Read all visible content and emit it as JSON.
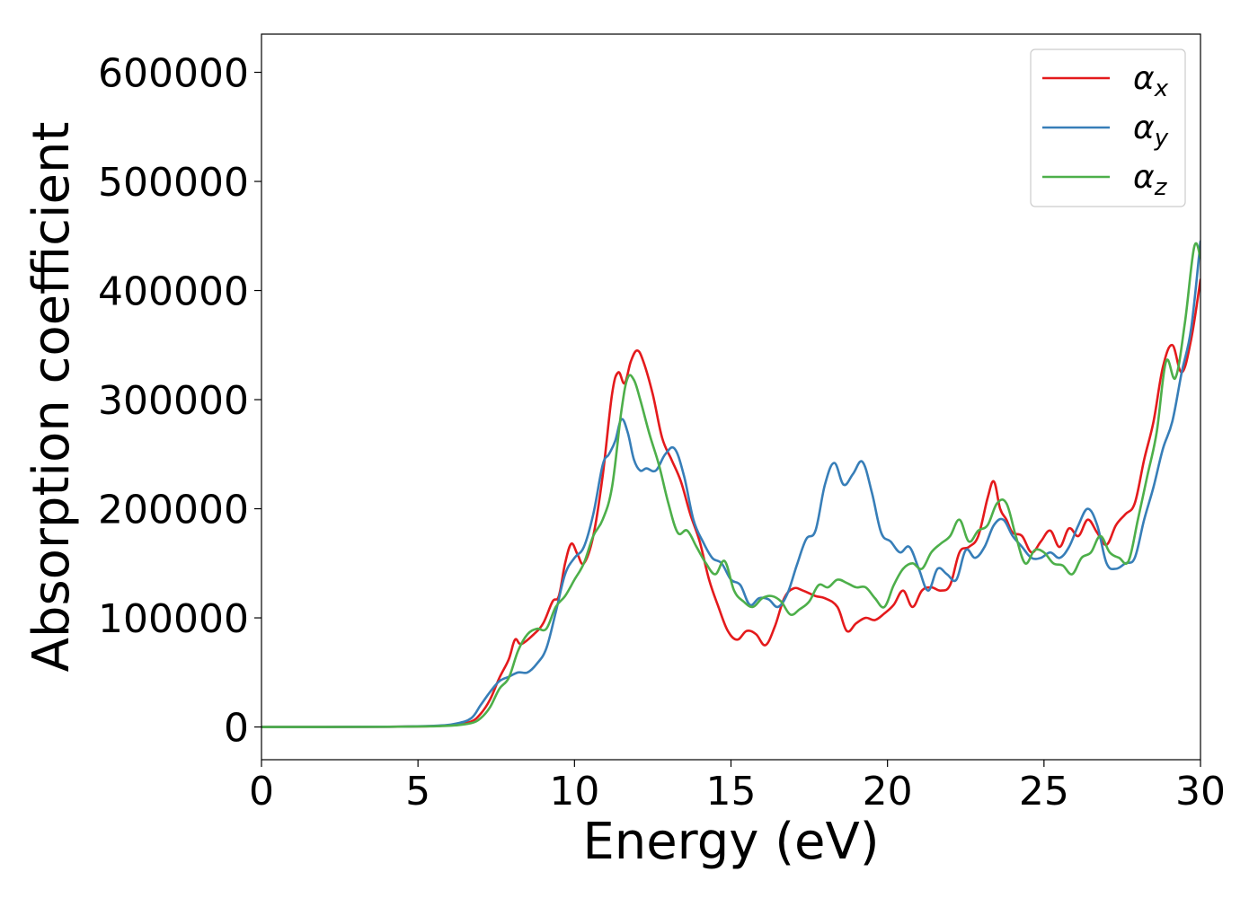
{
  "chart_data": {
    "type": "line",
    "xlabel": "Energy (eV)",
    "ylabel": "Absorption coefficient",
    "xlim": [
      0,
      30
    ],
    "ylim": [
      -30000,
      635000
    ],
    "xticks": [
      0,
      5,
      10,
      15,
      20,
      25,
      30
    ],
    "xtick_labels": [
      "0",
      "5",
      "10",
      "15",
      "20",
      "25",
      "30"
    ],
    "yticks": [
      0,
      100000,
      200000,
      300000,
      400000,
      500000,
      600000
    ],
    "ytick_labels": [
      "0",
      "100000",
      "200000",
      "300000",
      "400000",
      "500000",
      "600000"
    ],
    "grid": false,
    "legend_position": "top-right",
    "series": [
      {
        "name": "α",
        "subscript": "x",
        "color": "#e41a1c",
        "x": [
          0,
          2,
          4,
          5.5,
          6.2,
          6.7,
          7,
          7.3,
          7.6,
          7.9,
          8.1,
          8.3,
          8.7,
          9,
          9.3,
          9.5,
          9.7,
          9.9,
          10.1,
          10.3,
          10.6,
          10.9,
          11.2,
          11.4,
          11.6,
          11.8,
          12,
          12.2,
          12.5,
          12.8,
          13.1,
          13.4,
          13.7,
          14,
          14.3,
          14.6,
          14.9,
          15.2,
          15.5,
          15.8,
          16.1,
          16.4,
          16.7,
          17,
          17.3,
          17.7,
          18,
          18.4,
          18.7,
          19,
          19.3,
          19.6,
          19.9,
          20.2,
          20.5,
          20.8,
          21.1,
          21.4,
          21.7,
          22,
          22.3,
          22.6,
          22.9,
          23.2,
          23.4,
          23.6,
          23.8,
          24,
          24.3,
          24.6,
          24.9,
          25.2,
          25.5,
          25.8,
          26.1,
          26.4,
          26.7,
          27,
          27.3,
          27.6,
          27.9,
          28.2,
          28.5,
          28.8,
          29.1,
          29.4,
          29.7,
          30
        ],
        "y": [
          0,
          0,
          200,
          800,
          2000,
          5000,
          12000,
          25000,
          45000,
          62000,
          80000,
          76000,
          85000,
          95000,
          115000,
          120000,
          150000,
          168000,
          158000,
          150000,
          175000,
          230000,
          305000,
          325000,
          315000,
          335000,
          345000,
          335000,
          305000,
          265000,
          245000,
          225000,
          195000,
          170000,
          135000,
          110000,
          88000,
          80000,
          88000,
          85000,
          75000,
          92000,
          118000,
          127000,
          125000,
          120000,
          118000,
          110000,
          88000,
          95000,
          100000,
          98000,
          104000,
          112000,
          125000,
          110000,
          125000,
          128000,
          125000,
          130000,
          160000,
          165000,
          175000,
          210000,
          225000,
          200000,
          190000,
          178000,
          175000,
          160000,
          170000,
          180000,
          165000,
          182000,
          175000,
          190000,
          178000,
          167000,
          185000,
          195000,
          205000,
          245000,
          280000,
          330000,
          350000,
          325000,
          355000,
          410000
        ]
      },
      {
        "name": "α",
        "subscript": "y",
        "color": "#377eb8",
        "x": [
          0,
          2,
          4,
          5.5,
          6.2,
          6.7,
          7,
          7.3,
          7.6,
          7.9,
          8.2,
          8.5,
          8.8,
          9.1,
          9.4,
          9.7,
          10,
          10.3,
          10.6,
          10.9,
          11.1,
          11.3,
          11.5,
          11.7,
          11.9,
          12.1,
          12.3,
          12.6,
          12.9,
          13.2,
          13.5,
          13.8,
          14.1,
          14.4,
          14.7,
          15,
          15.3,
          15.6,
          15.9,
          16.2,
          16.5,
          16.8,
          17.1,
          17.4,
          17.7,
          18,
          18.3,
          18.6,
          18.9,
          19.2,
          19.5,
          19.8,
          20.1,
          20.4,
          20.7,
          21,
          21.3,
          21.6,
          21.9,
          22.2,
          22.5,
          22.8,
          23.1,
          23.4,
          23.7,
          24,
          24.3,
          24.6,
          24.9,
          25.2,
          25.5,
          25.8,
          26.1,
          26.4,
          26.7,
          27,
          27.3,
          27.6,
          27.9,
          28.2,
          28.5,
          28.8,
          29.1,
          29.4,
          29.7,
          30
        ],
        "y": [
          0,
          0,
          200,
          1000,
          3000,
          8000,
          20000,
          32000,
          42000,
          46000,
          50000,
          50000,
          58000,
          72000,
          105000,
          140000,
          155000,
          165000,
          195000,
          240000,
          250000,
          262000,
          282000,
          270000,
          245000,
          235000,
          237000,
          235000,
          250000,
          255000,
          230000,
          190000,
          170000,
          155000,
          150000,
          135000,
          130000,
          112000,
          118000,
          117000,
          110000,
          122000,
          148000,
          172000,
          180000,
          222000,
          242000,
          222000,
          232000,
          243000,
          215000,
          178000,
          170000,
          160000,
          165000,
          145000,
          125000,
          145000,
          140000,
          135000,
          162000,
          155000,
          165000,
          185000,
          190000,
          175000,
          165000,
          155000,
          155000,
          160000,
          155000,
          165000,
          185000,
          200000,
          185000,
          150000,
          145000,
          150000,
          155000,
          190000,
          220000,
          255000,
          280000,
          325000,
          365000,
          445000
        ]
      },
      {
        "name": "α",
        "subscript": "z",
        "color": "#4daf4a",
        "x": [
          0,
          2,
          4,
          5.5,
          6.2,
          6.7,
          7,
          7.3,
          7.6,
          7.9,
          8.2,
          8.5,
          8.8,
          9.1,
          9.4,
          9.7,
          10,
          10.3,
          10.6,
          10.9,
          11.2,
          11.5,
          11.7,
          11.9,
          12.1,
          12.4,
          12.7,
          13,
          13.3,
          13.6,
          13.9,
          14.2,
          14.5,
          14.8,
          15.1,
          15.4,
          15.7,
          16,
          16.3,
          16.6,
          16.9,
          17.2,
          17.5,
          17.8,
          18.1,
          18.4,
          18.7,
          19,
          19.3,
          19.6,
          19.9,
          20.2,
          20.5,
          20.8,
          21.1,
          21.4,
          21.7,
          22,
          22.3,
          22.6,
          22.9,
          23.2,
          23.5,
          23.8,
          24.1,
          24.4,
          24.7,
          25,
          25.3,
          25.6,
          25.9,
          26.2,
          26.5,
          26.8,
          27.1,
          27.4,
          27.7,
          28,
          28.3,
          28.6,
          28.9,
          29.2,
          29.5,
          29.8,
          30
        ],
        "y": [
          0,
          0,
          150,
          600,
          1500,
          3500,
          8000,
          18000,
          35000,
          45000,
          70000,
          85000,
          90000,
          90000,
          110000,
          120000,
          135000,
          150000,
          175000,
          190000,
          220000,
          290000,
          320000,
          318000,
          300000,
          268000,
          240000,
          205000,
          178000,
          180000,
          165000,
          150000,
          140000,
          152000,
          125000,
          115000,
          110000,
          118000,
          120000,
          115000,
          103000,
          108000,
          115000,
          130000,
          128000,
          135000,
          132000,
          128000,
          128000,
          118000,
          110000,
          130000,
          145000,
          150000,
          145000,
          160000,
          168000,
          175000,
          190000,
          170000,
          180000,
          185000,
          205000,
          205000,
          175000,
          150000,
          162000,
          160000,
          150000,
          148000,
          140000,
          155000,
          160000,
          175000,
          160000,
          155000,
          152000,
          190000,
          230000,
          270000,
          335000,
          320000,
          370000,
          440000,
          430000
        ]
      }
    ]
  }
}
